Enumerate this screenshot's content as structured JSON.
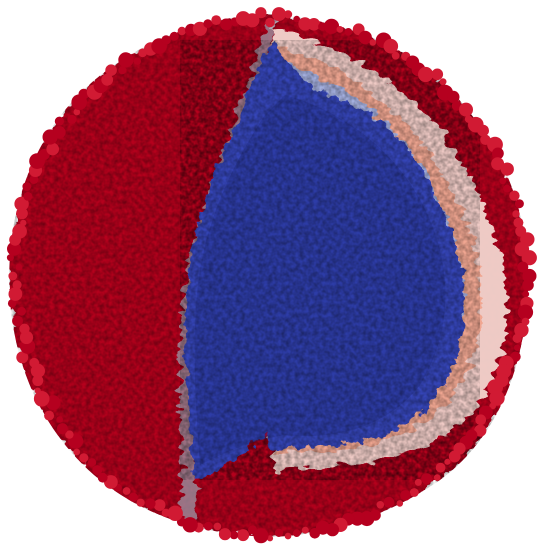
{
  "scene": {
    "subject": "cutaway-sphere",
    "background_color": "#ffffff",
    "colors": {
      "outer_shell": "#b5001f",
      "outer_shell_light": "#d11a33",
      "outer_shell_dark": "#7a0014",
      "inner_core": "#3445b8",
      "inner_core_dark": "#1f2a88",
      "inner_core_light": "#5566cc",
      "mixing_light_blue": "#9db3ea",
      "mixing_pale": "#f2d5cf",
      "mixing_salmon": "#f0a088",
      "edge_gray": "#9a9aa8"
    },
    "icons": [
      "sphere-shell-icon"
    ]
  }
}
